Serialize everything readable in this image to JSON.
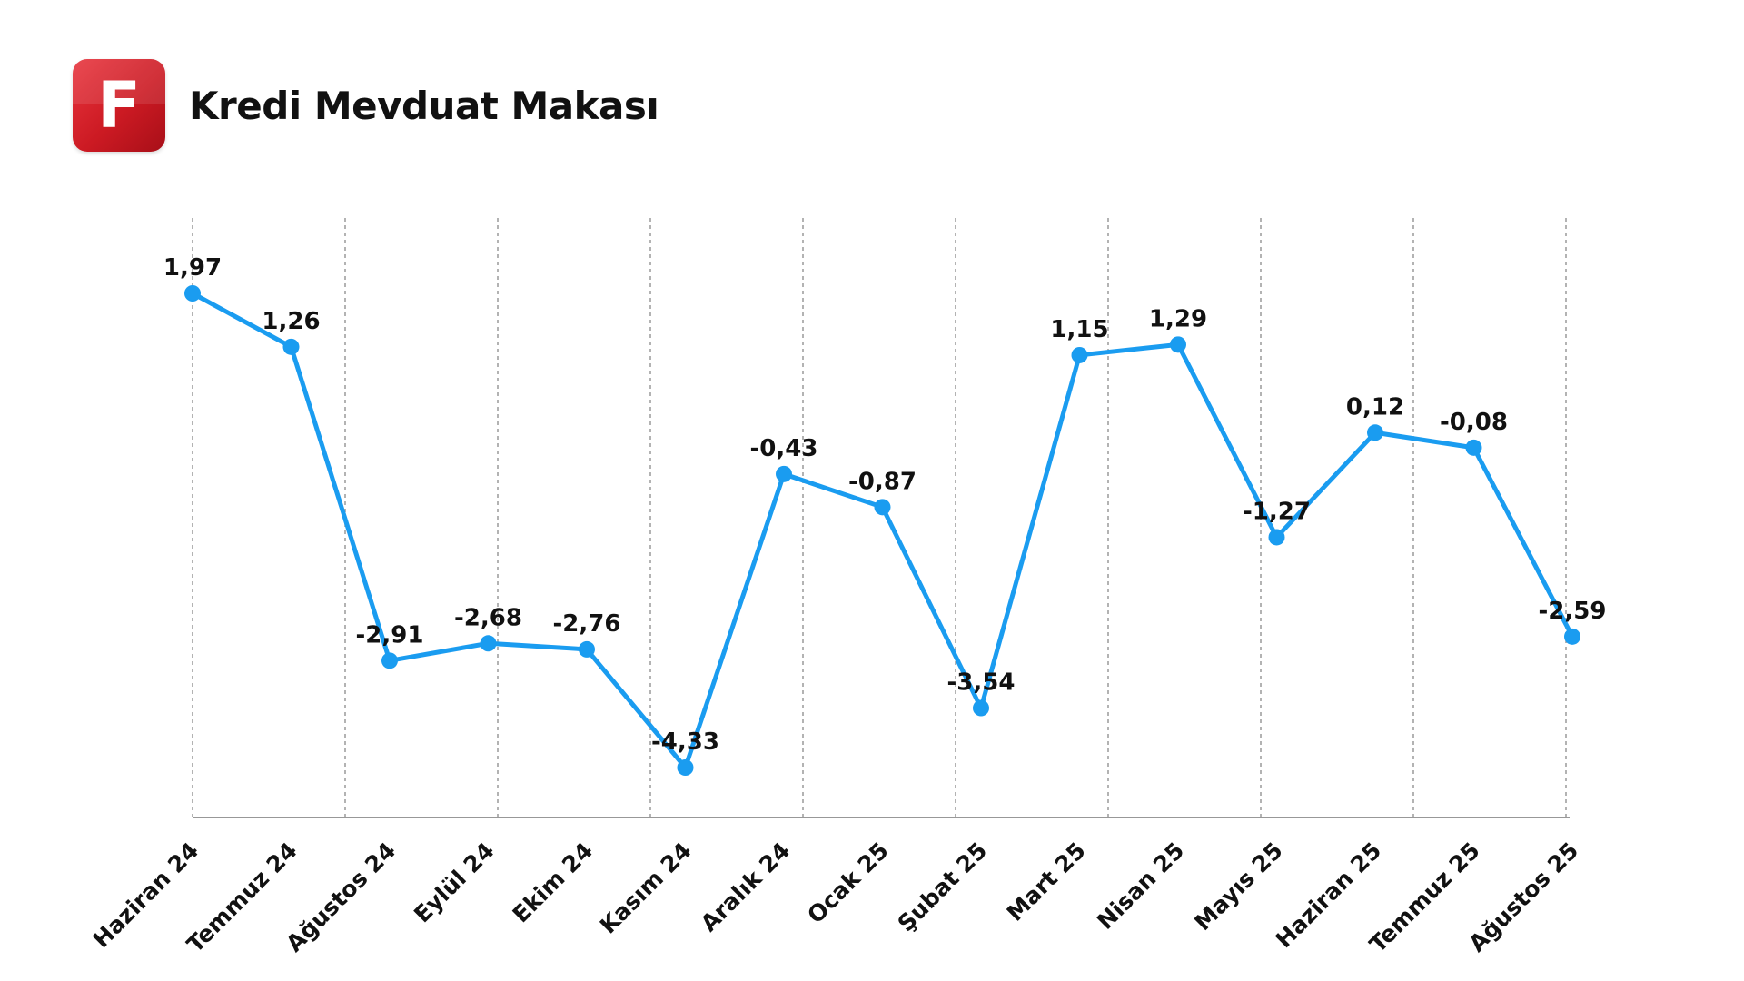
{
  "header": {
    "logo_letter": "F",
    "title": "Kredi Mevduat Makası",
    "logo_color": "#d91f28"
  },
  "chart_data": {
    "type": "line",
    "title": "Kredi Mevduat Makası",
    "xlabel": "",
    "ylabel": "",
    "ylim": [
      -5.2,
      3.0
    ],
    "grid": "vertical dashed",
    "legend": "none",
    "line_color": "#1a9cf0",
    "categories": [
      "Haziran 24",
      "Temmuz 24",
      "Ağustos 24",
      "Eylül 24",
      "Ekim 24",
      "Kasım 24",
      "Aralık 24",
      "Ocak 25",
      "Şubat 25",
      "Mart 25",
      "Nisan 25",
      "Mayıs 25",
      "Haziran 25",
      "Temmuz 25",
      "Ağustos 25"
    ],
    "values": [
      1.97,
      1.26,
      -2.91,
      -2.68,
      -2.76,
      -4.33,
      -0.43,
      -0.87,
      -3.54,
      1.15,
      1.29,
      -1.27,
      0.12,
      -0.08,
      -2.59
    ],
    "value_labels": [
      "1,97",
      "1,26",
      "-2,91",
      "-2,68",
      "-2,76",
      "-4,33",
      "-0,43",
      "-0,87",
      "-3,54",
      "1,15",
      "1,29",
      "-1,27",
      "0,12",
      "-0,08",
      "-2,59"
    ]
  }
}
